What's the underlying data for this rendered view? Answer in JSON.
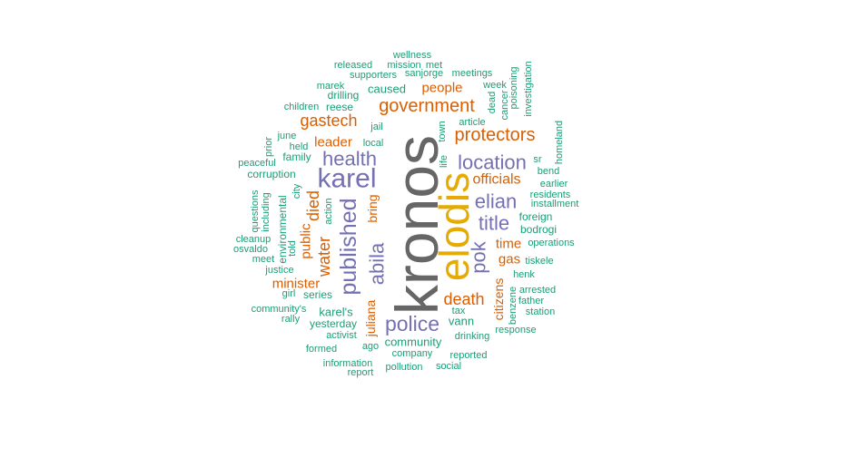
{
  "palette": {
    "gray": "#666666",
    "gold": "#e6ab02",
    "purple": "#7570b3",
    "orange": "#d95f02",
    "teal": "#1b9e77"
  },
  "words": [
    {
      "text": "kronos",
      "color": "gray"
    },
    {
      "text": "elodis",
      "color": "gold"
    },
    {
      "text": "karel",
      "color": "purple"
    },
    {
      "text": "published",
      "color": "purple"
    },
    {
      "text": "police",
      "color": "purple"
    },
    {
      "text": "health",
      "color": "purple"
    },
    {
      "text": "location",
      "color": "purple"
    },
    {
      "text": "title",
      "color": "purple"
    },
    {
      "text": "elian",
      "color": "purple"
    },
    {
      "text": "abila",
      "color": "purple"
    },
    {
      "text": "pok",
      "color": "purple"
    },
    {
      "text": "government",
      "color": "orange"
    },
    {
      "text": "protectors",
      "color": "orange"
    },
    {
      "text": "gastech",
      "color": "orange"
    },
    {
      "text": "death",
      "color": "orange"
    },
    {
      "text": "water",
      "color": "orange"
    },
    {
      "text": "died",
      "color": "orange"
    },
    {
      "text": "officials",
      "color": "orange"
    },
    {
      "text": "people",
      "color": "orange"
    },
    {
      "text": "leader",
      "color": "orange"
    },
    {
      "text": "minister",
      "color": "orange"
    },
    {
      "text": "public",
      "color": "orange"
    },
    {
      "text": "time",
      "color": "orange"
    },
    {
      "text": "gas",
      "color": "orange"
    },
    {
      "text": "bring",
      "color": "orange"
    },
    {
      "text": "citizens",
      "color": "orange"
    },
    {
      "text": "juliana",
      "color": "orange"
    },
    {
      "text": "karel's",
      "color": "teal"
    },
    {
      "text": "vann",
      "color": "teal"
    },
    {
      "text": "community",
      "color": "teal"
    },
    {
      "text": "caused",
      "color": "teal"
    },
    {
      "text": "family",
      "color": "teal"
    },
    {
      "text": "series",
      "color": "teal"
    },
    {
      "text": "yesterday",
      "color": "teal"
    },
    {
      "text": "foreign",
      "color": "teal"
    },
    {
      "text": "bodrogi",
      "color": "teal"
    },
    {
      "text": "reese",
      "color": "teal"
    },
    {
      "text": "drilling",
      "color": "teal"
    },
    {
      "text": "corruption",
      "color": "teal"
    },
    {
      "text": "environmental",
      "color": "teal"
    },
    {
      "text": "operations",
      "color": "teal"
    },
    {
      "text": "wellness",
      "color": "teal"
    },
    {
      "text": "released",
      "color": "teal"
    },
    {
      "text": "mission",
      "color": "teal"
    },
    {
      "text": "met",
      "color": "teal"
    },
    {
      "text": "supporters",
      "color": "teal"
    },
    {
      "text": "sanjorge",
      "color": "teal"
    },
    {
      "text": "meetings",
      "color": "teal"
    },
    {
      "text": "marek",
      "color": "teal"
    },
    {
      "text": "week",
      "color": "teal"
    },
    {
      "text": "dead",
      "color": "teal"
    },
    {
      "text": "cancer",
      "color": "teal"
    },
    {
      "text": "poisoning",
      "color": "teal"
    },
    {
      "text": "investigation",
      "color": "teal"
    },
    {
      "text": "children",
      "color": "teal"
    },
    {
      "text": "jail",
      "color": "teal"
    },
    {
      "text": "article",
      "color": "teal"
    },
    {
      "text": "town",
      "color": "teal"
    },
    {
      "text": "june",
      "color": "teal"
    },
    {
      "text": "prior",
      "color": "teal"
    },
    {
      "text": "held",
      "color": "teal"
    },
    {
      "text": "local",
      "color": "teal"
    },
    {
      "text": "life",
      "color": "teal"
    },
    {
      "text": "homeland",
      "color": "teal"
    },
    {
      "text": "peaceful",
      "color": "teal"
    },
    {
      "text": "sr",
      "color": "teal"
    },
    {
      "text": "bend",
      "color": "teal"
    },
    {
      "text": "city",
      "color": "teal"
    },
    {
      "text": "earlier",
      "color": "teal"
    },
    {
      "text": "residents",
      "color": "teal"
    },
    {
      "text": "installment",
      "color": "teal"
    },
    {
      "text": "questions",
      "color": "teal"
    },
    {
      "text": "including",
      "color": "teal"
    },
    {
      "text": "action",
      "color": "teal"
    },
    {
      "text": "told",
      "color": "teal"
    },
    {
      "text": "cleanup",
      "color": "teal"
    },
    {
      "text": "osvaldo",
      "color": "teal"
    },
    {
      "text": "meet",
      "color": "teal"
    },
    {
      "text": "tiskele",
      "color": "teal"
    },
    {
      "text": "justice",
      "color": "teal"
    },
    {
      "text": "henk",
      "color": "teal"
    },
    {
      "text": "girl",
      "color": "teal"
    },
    {
      "text": "arrested",
      "color": "teal"
    },
    {
      "text": "benzene",
      "color": "teal"
    },
    {
      "text": "father",
      "color": "teal"
    },
    {
      "text": "community's",
      "color": "teal"
    },
    {
      "text": "tax",
      "color": "teal"
    },
    {
      "text": "station",
      "color": "teal"
    },
    {
      "text": "rally",
      "color": "teal"
    },
    {
      "text": "drinking",
      "color": "teal"
    },
    {
      "text": "response",
      "color": "teal"
    },
    {
      "text": "activist",
      "color": "teal"
    },
    {
      "text": "formed",
      "color": "teal"
    },
    {
      "text": "ago",
      "color": "teal"
    },
    {
      "text": "company",
      "color": "teal"
    },
    {
      "text": "reported",
      "color": "teal"
    },
    {
      "text": "information",
      "color": "teal"
    },
    {
      "text": "pollution",
      "color": "teal"
    },
    {
      "text": "social",
      "color": "teal"
    },
    {
      "text": "report",
      "color": "teal"
    }
  ]
}
